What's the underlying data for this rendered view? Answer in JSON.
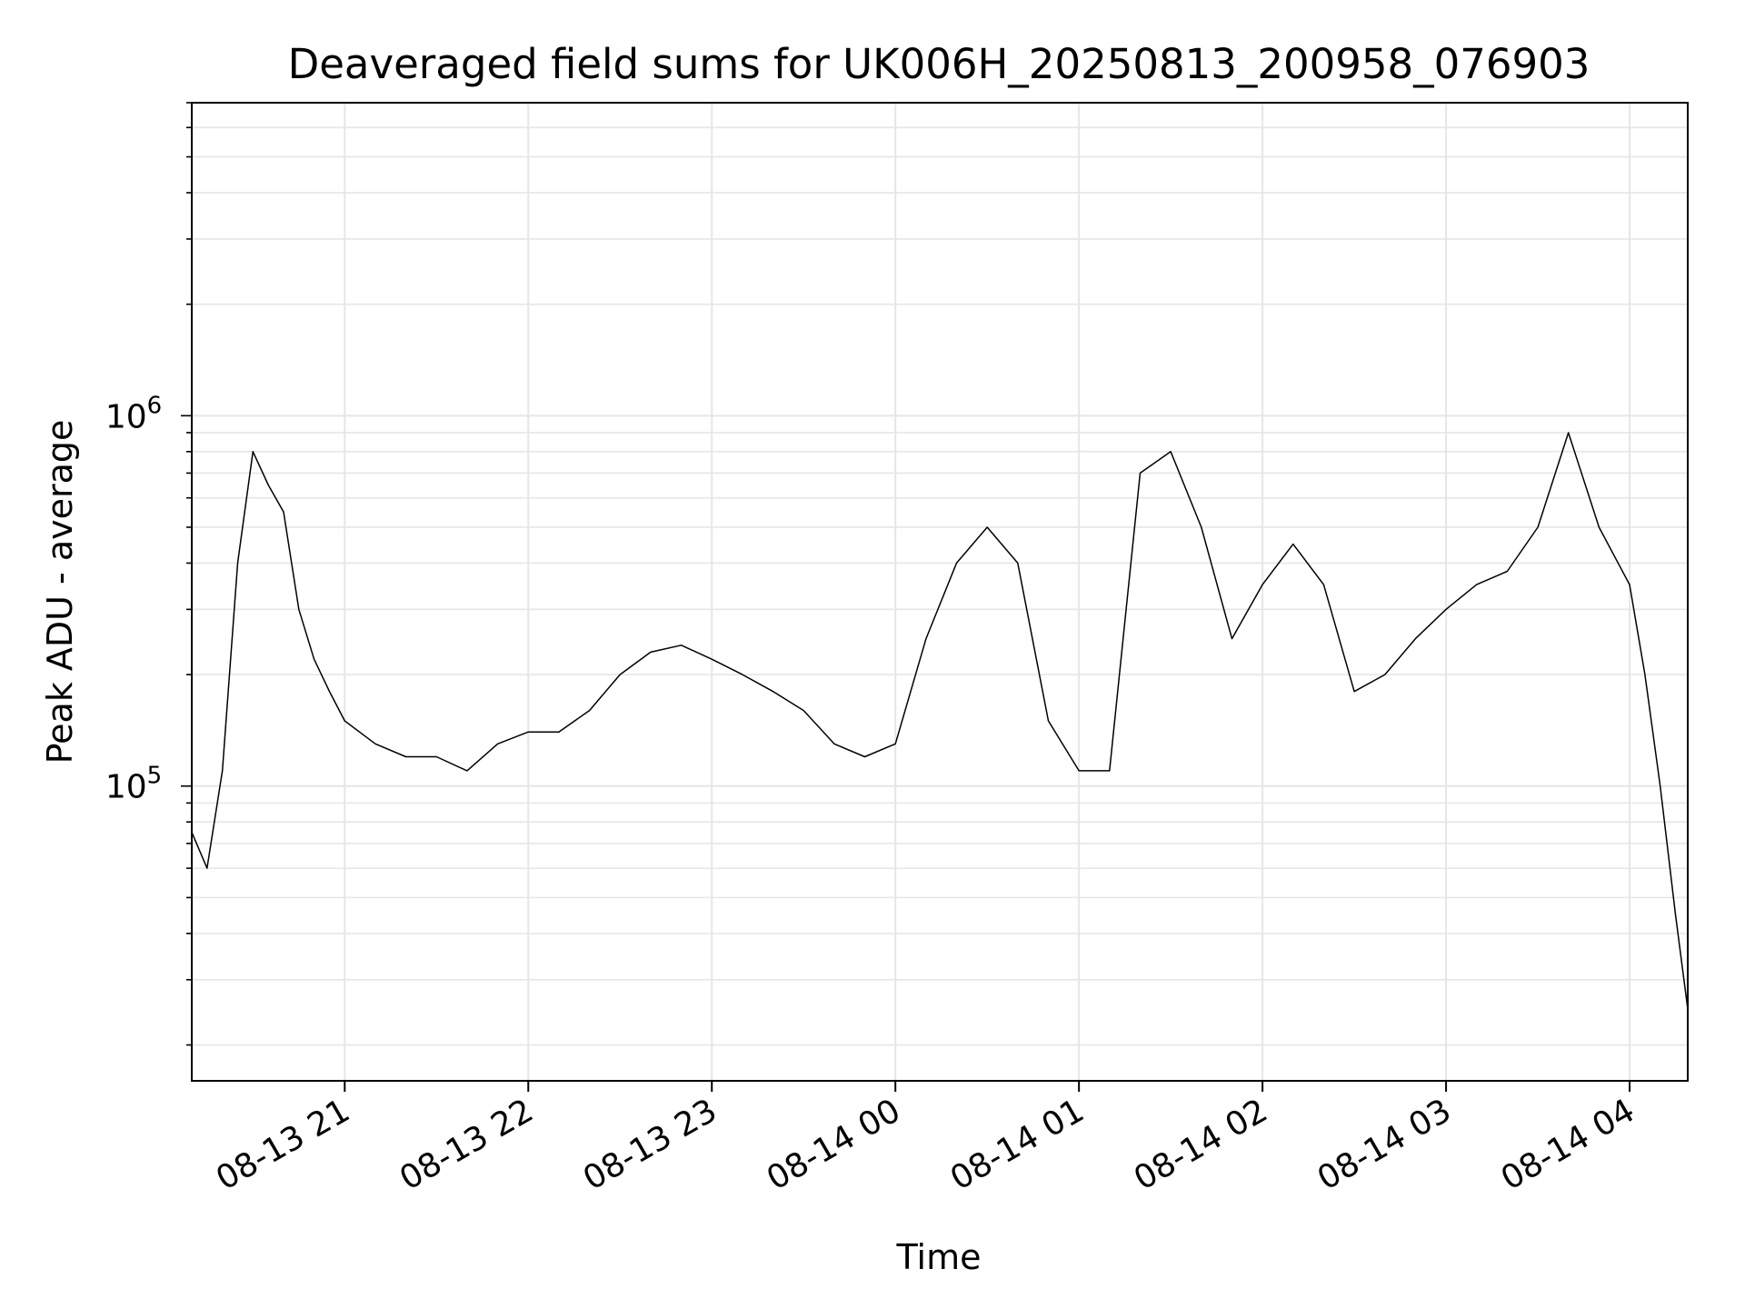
{
  "chart_data": {
    "type": "line",
    "title": "Deaveraged field sums for UK006H_20250813_200958_076903",
    "xlabel": "Time",
    "ylabel": "Peak ADU - average",
    "y_scale": "log",
    "ylim": [
      16000,
      7000000
    ],
    "xlim": [
      "2025-08-13 20:10",
      "2025-08-14 04:19"
    ],
    "grid": true,
    "legend": "none",
    "line_color": "#000000",
    "grid_color": "#e6e6e6",
    "x_ticks": [
      {
        "t": "2025-08-13 21:00",
        "label": "08-13 21"
      },
      {
        "t": "2025-08-13 22:00",
        "label": "08-13 22"
      },
      {
        "t": "2025-08-13 23:00",
        "label": "08-13 23"
      },
      {
        "t": "2025-08-14 00:00",
        "label": "08-14 00"
      },
      {
        "t": "2025-08-14 01:00",
        "label": "08-14 01"
      },
      {
        "t": "2025-08-14 02:00",
        "label": "08-14 02"
      },
      {
        "t": "2025-08-14 03:00",
        "label": "08-14 03"
      },
      {
        "t": "2025-08-14 04:00",
        "label": "08-14 04"
      }
    ],
    "y_ticks": [
      {
        "v": 100000,
        "base": "10",
        "exp": "5"
      },
      {
        "v": 1000000,
        "base": "10",
        "exp": "6"
      }
    ],
    "series": [
      {
        "points": [
          [
            "2025-08-13 20:10",
            75000
          ],
          [
            "2025-08-13 20:15",
            60000
          ],
          [
            "2025-08-13 20:20",
            110000
          ],
          [
            "2025-08-13 20:25",
            400000
          ],
          [
            "2025-08-13 20:30",
            800000
          ],
          [
            "2025-08-13 20:35",
            650000
          ],
          [
            "2025-08-13 20:40",
            550000
          ],
          [
            "2025-08-13 20:45",
            300000
          ],
          [
            "2025-08-13 20:50",
            220000
          ],
          [
            "2025-08-13 20:55",
            180000
          ],
          [
            "2025-08-13 21:00",
            150000
          ],
          [
            "2025-08-13 21:10",
            130000
          ],
          [
            "2025-08-13 21:20",
            120000
          ],
          [
            "2025-08-13 21:30",
            120000
          ],
          [
            "2025-08-13 21:40",
            110000
          ],
          [
            "2025-08-13 21:50",
            130000
          ],
          [
            "2025-08-13 22:00",
            140000
          ],
          [
            "2025-08-13 22:10",
            140000
          ],
          [
            "2025-08-13 22:20",
            160000
          ],
          [
            "2025-08-13 22:30",
            200000
          ],
          [
            "2025-08-13 22:40",
            230000
          ],
          [
            "2025-08-13 22:50",
            240000
          ],
          [
            "2025-08-13 23:00",
            220000
          ],
          [
            "2025-08-13 23:10",
            200000
          ],
          [
            "2025-08-13 23:20",
            180000
          ],
          [
            "2025-08-13 23:30",
            160000
          ],
          [
            "2025-08-13 23:40",
            130000
          ],
          [
            "2025-08-13 23:50",
            120000
          ],
          [
            "2025-08-14 00:00",
            130000
          ],
          [
            "2025-08-14 00:10",
            250000
          ],
          [
            "2025-08-14 00:20",
            400000
          ],
          [
            "2025-08-14 00:30",
            500000
          ],
          [
            "2025-08-14 00:40",
            400000
          ],
          [
            "2025-08-14 00:50",
            150000
          ],
          [
            "2025-08-14 01:00",
            110000
          ],
          [
            "2025-08-14 01:10",
            110000
          ],
          [
            "2025-08-14 01:20",
            700000
          ],
          [
            "2025-08-14 01:30",
            800000
          ],
          [
            "2025-08-14 01:40",
            500000
          ],
          [
            "2025-08-14 01:50",
            250000
          ],
          [
            "2025-08-14 02:00",
            350000
          ],
          [
            "2025-08-14 02:10",
            450000
          ],
          [
            "2025-08-14 02:20",
            350000
          ],
          [
            "2025-08-14 02:30",
            180000
          ],
          [
            "2025-08-14 02:40",
            200000
          ],
          [
            "2025-08-14 02:50",
            250000
          ],
          [
            "2025-08-14 03:00",
            300000
          ],
          [
            "2025-08-14 03:10",
            350000
          ],
          [
            "2025-08-14 03:20",
            380000
          ],
          [
            "2025-08-14 03:30",
            500000
          ],
          [
            "2025-08-14 03:40",
            900000
          ],
          [
            "2025-08-14 03:50",
            500000
          ],
          [
            "2025-08-14 04:00",
            350000
          ],
          [
            "2025-08-14 04:05",
            200000
          ],
          [
            "2025-08-14 04:10",
            100000
          ],
          [
            "2025-08-14 04:15",
            45000
          ],
          [
            "2025-08-14 04:19",
            25000
          ]
        ]
      }
    ]
  }
}
